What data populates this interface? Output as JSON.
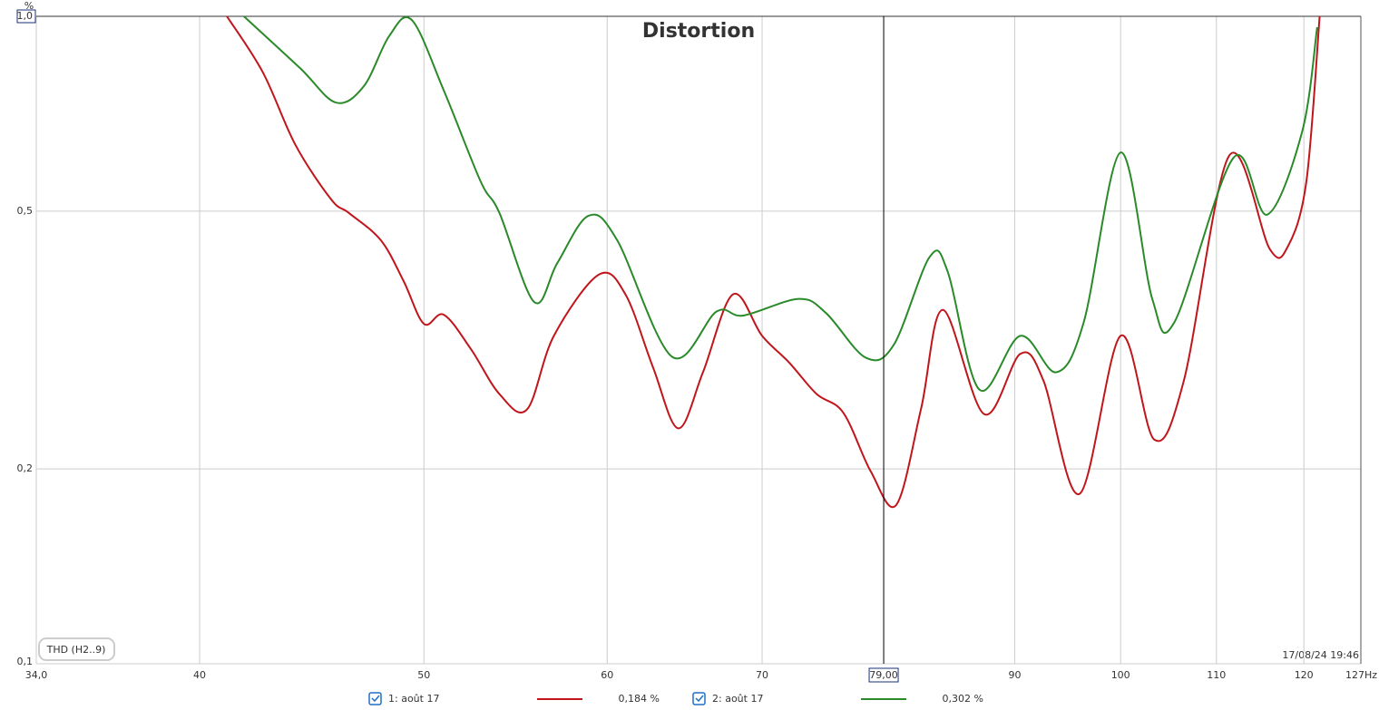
{
  "chart_data": {
    "type": "line",
    "title": "Distortion",
    "y_unit": "%",
    "log_x": true,
    "log_y": true,
    "grid": true,
    "xlim": [
      34,
      127
    ],
    "ylim": [
      0.1,
      1.0
    ],
    "xticks": [
      {
        "value": 34,
        "label": "34,0"
      },
      40,
      50,
      60,
      70,
      90,
      100,
      110,
      120,
      {
        "value": 127,
        "label": "127Hz"
      }
    ],
    "yticks": [
      {
        "value": 0.1,
        "label": "0,1"
      },
      {
        "value": 0.2,
        "label": "0,2"
      },
      {
        "value": 0.5,
        "label": "0,5"
      },
      {
        "value": 1.0,
        "label": "1,0"
      }
    ],
    "cursor": {
      "value": 79,
      "label": "79,00"
    },
    "badge": "THD (H2..9)",
    "timestamp": "17/08/24 19:46",
    "series": [
      {
        "name": "1: août 17",
        "color": "#c0161b",
        "readout": "0,184 %",
        "x": [
          41.1,
          42.6,
          44.0,
          45.6,
          46.4,
          47.9,
          49.0,
          50.0,
          51.0,
          52.4,
          53.9,
          55.4,
          56.9,
          59.5,
          61.1,
          62.8,
          64.4,
          66.0,
          68.0,
          70.0,
          71.9,
          73.9,
          75.9,
          78.0,
          80.0,
          82.0,
          83.8,
          87.3,
          90.5,
          92.6,
          96.0,
          100.0,
          103.4,
          106.5,
          111.4,
          116.0,
          118.1,
          120.3,
          121.9
        ],
        "values": [
          1.0,
          0.819,
          0.633,
          0.521,
          0.497,
          0.451,
          0.39,
          0.335,
          0.346,
          0.306,
          0.261,
          0.247,
          0.321,
          0.399,
          0.372,
          0.287,
          0.231,
          0.282,
          0.372,
          0.321,
          0.292,
          0.261,
          0.244,
          0.198,
          0.176,
          0.248,
          0.352,
          0.243,
          0.301,
          0.274,
          0.183,
          0.321,
          0.222,
          0.274,
          0.609,
          0.437,
          0.441,
          0.556,
          1.0
        ]
      },
      {
        "name": "2: août 17",
        "color": "#2a8a2a",
        "readout": "0,302 %",
        "x": [
          41.8,
          44.2,
          45.8,
          47.1,
          48.3,
          49.4,
          51.0,
          52.9,
          53.9,
          55.8,
          57.1,
          58.9,
          60.6,
          64.0,
          66.9,
          68.7,
          72.6,
          74.6,
          77.6,
          79.8,
          82.7,
          84.2,
          86.9,
          90.5,
          93.8,
          96.4,
          100.0,
          103.2,
          105.5,
          111.9,
          115.7,
          119.8,
          121.6
        ],
        "values": [
          1.0,
          0.832,
          0.736,
          0.78,
          0.932,
          0.987,
          0.768,
          0.556,
          0.497,
          0.362,
          0.416,
          0.492,
          0.451,
          0.298,
          0.35,
          0.345,
          0.366,
          0.348,
          0.297,
          0.311,
          0.425,
          0.403,
          0.265,
          0.321,
          0.282,
          0.337,
          0.616,
          0.366,
          0.337,
          0.605,
          0.494,
          0.664,
          0.962
        ]
      }
    ]
  }
}
